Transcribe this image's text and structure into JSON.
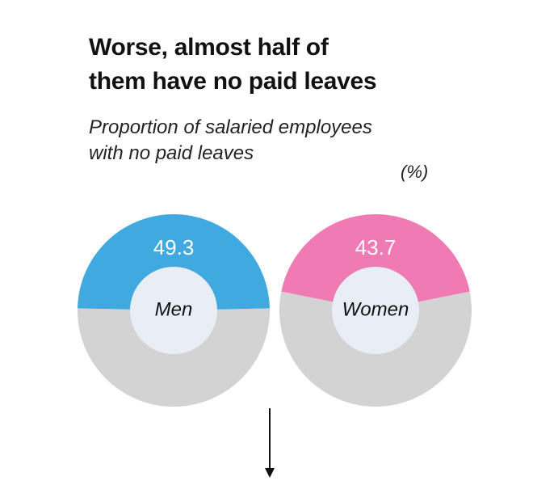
{
  "header": {
    "title_line1": "Worse, almost half of",
    "title_line2": "them have no paid leaves",
    "subtitle_line1": "Proportion of salaried employees",
    "subtitle_line2": "with no paid leaves",
    "unit": "(%)"
  },
  "chart_data": {
    "type": "pie",
    "title": "Worse, almost half of them have no paid leaves",
    "subtitle": "Proportion of salaried employees with no paid leaves",
    "unit": "(%)",
    "charts": [
      {
        "label": "Men",
        "value": 49.3,
        "value_label": "49.3",
        "color": "#3fa9e0",
        "remainder_color": "#d3d3d3"
      },
      {
        "label": "Women",
        "value": 43.7,
        "value_label": "43.7",
        "color": "#f07ab3",
        "remainder_color": "#d3d3d3"
      }
    ],
    "center_color": "#e9edf6"
  }
}
